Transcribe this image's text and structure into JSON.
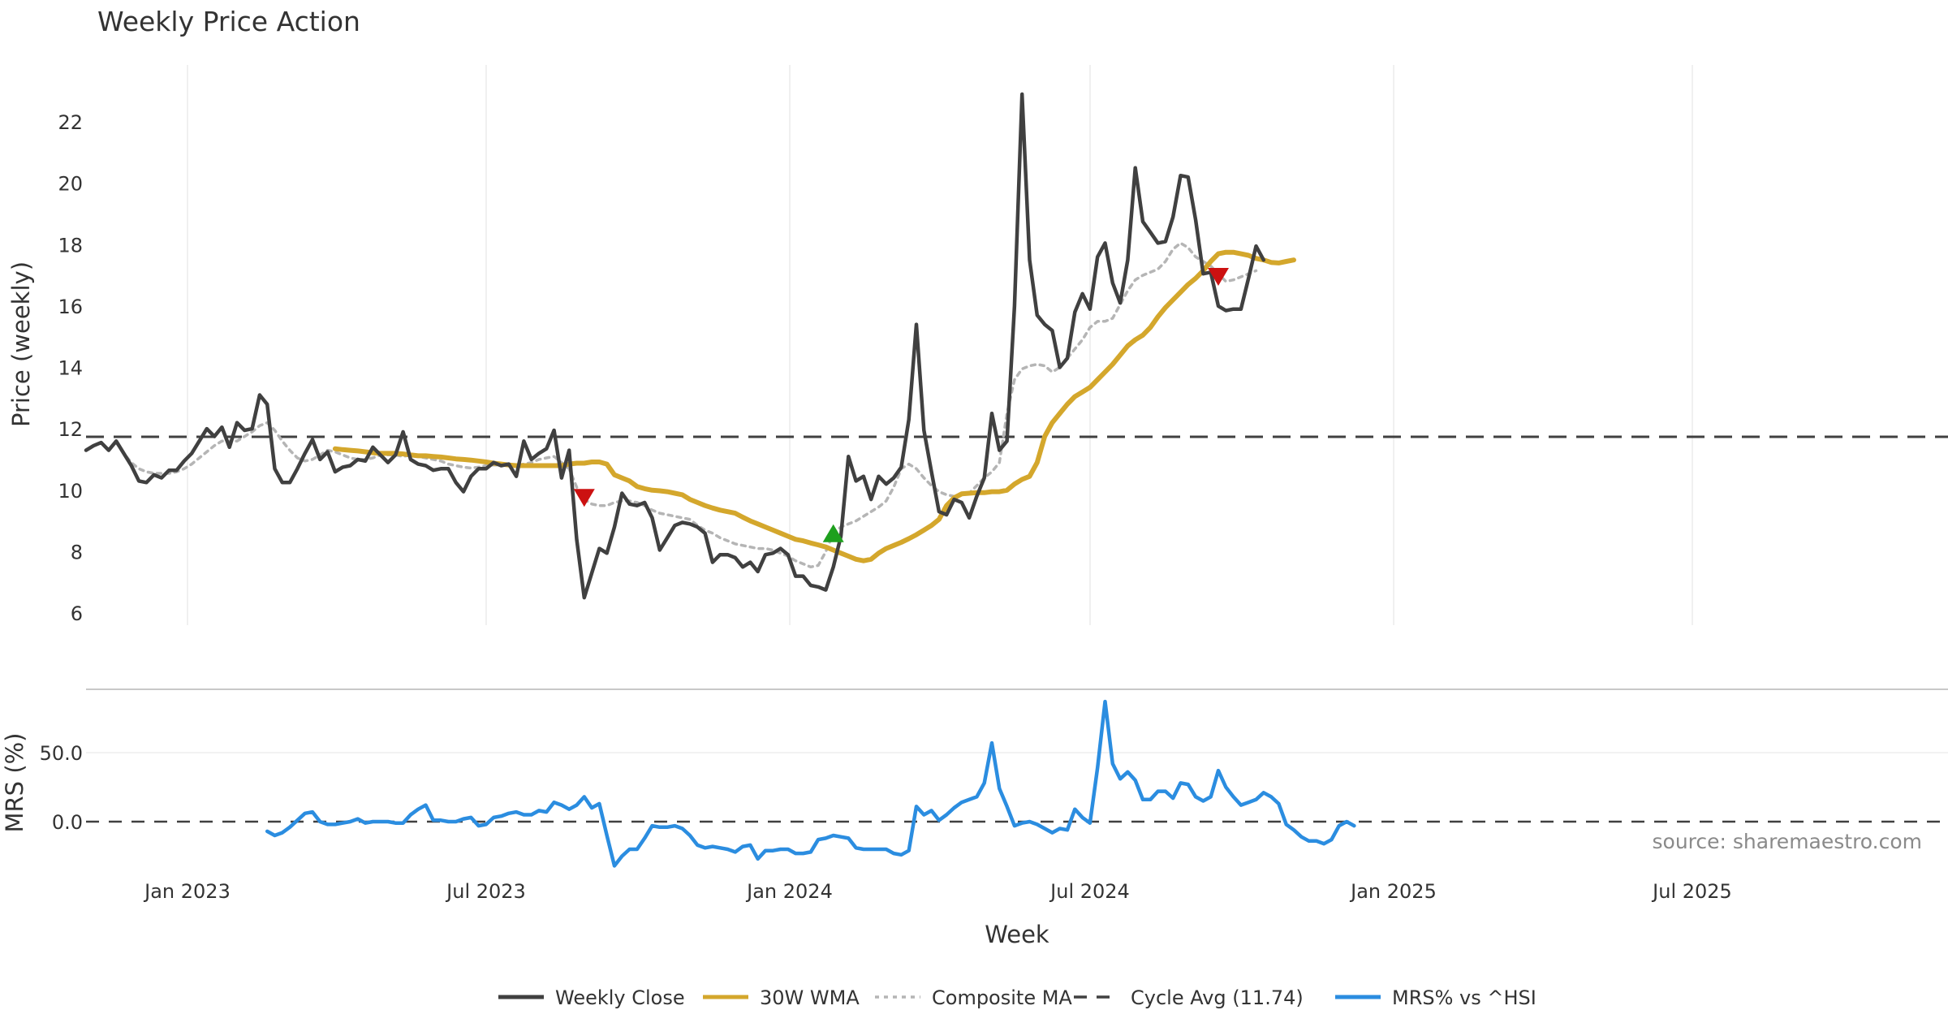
{
  "chart_data": {
    "type": "line",
    "title": "Weekly Price Action",
    "xlabel": "Week",
    "source": "source: sharemaestro.com",
    "x_tick_labels": [
      "Jan 2023",
      "Jul 2023",
      "Jan 2024",
      "Jul 2024",
      "Jan 2025",
      "Jul 2025"
    ],
    "panels": [
      {
        "name": "price",
        "ylabel": "Price (weekly)",
        "ylim": [
          5.6,
          23.9
        ],
        "yticks": [
          "6",
          "8",
          "10",
          "12",
          "14",
          "16",
          "18",
          "20",
          "22"
        ],
        "cycle_avg": 11.74,
        "series": [
          {
            "name": "Weekly Close",
            "color": "#404040",
            "start_week": 0,
            "values": [
              11.3,
              11.45,
              11.55,
              11.3,
              11.6,
              11.2,
              10.8,
              10.3,
              10.25,
              10.5,
              10.4,
              10.65,
              10.65,
              10.95,
              11.2,
              11.6,
              12.0,
              11.75,
              12.05,
              11.4,
              12.2,
              11.95,
              12.0,
              13.1,
              12.8,
              10.7,
              10.25,
              10.25,
              10.7,
              11.2,
              11.65,
              11.0,
              11.25,
              10.6,
              10.75,
              10.8,
              11.0,
              10.95,
              11.4,
              11.15,
              10.9,
              11.15,
              11.9,
              11.0,
              10.85,
              10.8,
              10.65,
              10.7,
              10.7,
              10.25,
              9.95,
              10.45,
              10.7,
              10.7,
              10.9,
              10.8,
              10.85,
              10.45,
              11.6,
              11.0,
              11.2,
              11.35,
              11.95,
              10.4,
              11.3,
              8.4,
              6.5,
              7.3,
              8.1,
              7.95,
              8.8,
              9.9,
              9.55,
              9.5,
              9.6,
              9.1,
              8.05,
              8.45,
              8.85,
              8.95,
              8.9,
              8.8,
              8.6,
              7.65,
              7.9,
              7.9,
              7.8,
              7.5,
              7.65,
              7.35,
              7.9,
              7.95,
              8.1,
              7.9,
              7.2,
              7.2,
              6.9,
              6.85,
              6.75,
              7.5,
              8.5,
              11.1,
              10.3,
              10.45,
              9.7,
              10.45,
              10.2,
              10.4,
              10.75,
              12.3,
              15.4,
              11.95,
              10.6,
              9.3,
              9.2,
              9.7,
              9.6,
              9.1,
              9.8,
              10.4,
              12.5,
              11.3,
              11.6,
              16.0,
              22.9,
              17.5,
              15.7,
              15.4,
              15.2,
              14.0,
              14.3,
              15.8,
              16.4,
              15.9,
              17.6,
              18.05,
              16.75,
              16.1,
              17.5,
              20.5,
              18.75,
              18.4,
              18.05,
              18.1,
              18.9,
              20.25,
              20.2,
              18.8,
              17.05,
              17.1,
              16.0,
              15.85,
              15.9,
              15.9,
              16.9,
              17.95,
              17.5
            ]
          },
          {
            "name": "30W WMA",
            "color": "#d4a72c",
            "start_week": 33,
            "values": [
              11.35,
              11.32,
              11.3,
              11.28,
              11.25,
              11.22,
              11.2,
              11.2,
              11.2,
              11.18,
              11.15,
              11.12,
              11.12,
              11.1,
              11.08,
              11.05,
              11.02,
              11.0,
              10.98,
              10.95,
              10.92,
              10.88,
              10.85,
              10.82,
              10.8,
              10.8,
              10.8,
              10.8,
              10.8,
              10.8,
              10.8,
              10.85,
              10.88,
              10.88,
              10.92,
              10.92,
              10.85,
              10.5,
              10.4,
              10.3,
              10.12,
              10.05,
              10.0,
              9.98,
              9.95,
              9.9,
              9.85,
              9.7,
              9.6,
              9.5,
              9.42,
              9.35,
              9.3,
              9.25,
              9.12,
              9.0,
              8.9,
              8.8,
              8.7,
              8.6,
              8.5,
              8.4,
              8.35,
              8.28,
              8.22,
              8.15,
              8.05,
              7.95,
              7.85,
              7.75,
              7.7,
              7.75,
              7.95,
              8.1,
              8.2,
              8.3,
              8.42,
              8.55,
              8.7,
              8.85,
              9.05,
              9.5,
              9.75,
              9.88,
              9.9,
              9.92,
              9.92,
              9.95,
              9.95,
              10.0,
              10.2,
              10.35,
              10.45,
              10.9,
              11.75,
              12.2,
              12.5,
              12.8,
              13.05,
              13.2,
              13.35,
              13.6,
              13.85,
              14.1,
              14.4,
              14.7,
              14.9,
              15.05,
              15.3,
              15.65,
              15.95,
              16.2,
              16.45,
              16.7,
              16.9,
              17.15,
              17.45,
              17.7,
              17.75,
              17.75,
              17.7,
              17.65,
              17.55,
              17.5,
              17.42,
              17.4,
              17.45,
              17.5
            ]
          },
          {
            "name": "Composite MA",
            "color": "#b5b5b5",
            "start_week": 4,
            "values": [
              11.55,
              11.2,
              10.9,
              10.7,
              10.6,
              10.55,
              10.55,
              10.55,
              10.6,
              10.7,
              10.85,
              11.05,
              11.25,
              11.45,
              11.6,
              11.6,
              11.6,
              11.75,
              11.9,
              12.1,
              12.2,
              11.95,
              11.6,
              11.3,
              11.05,
              10.95,
              11.0,
              11.15,
              11.3,
              11.25,
              11.15,
              11.05,
              11.0,
              11.0,
              11.05,
              11.15,
              11.15,
              11.15,
              11.1,
              11.15,
              11.1,
              11.05,
              11.0,
              10.95,
              10.85,
              10.8,
              10.75,
              10.72,
              10.75,
              10.8,
              10.82,
              10.82,
              10.8,
              10.8,
              10.85,
              10.9,
              11.0,
              11.05,
              11.1,
              10.9,
              10.7,
              10.1,
              9.7,
              9.55,
              9.5,
              9.5,
              9.6,
              9.65,
              9.65,
              9.6,
              9.5,
              9.35,
              9.25,
              9.2,
              9.15,
              9.1,
              9.05,
              8.85,
              8.7,
              8.6,
              8.45,
              8.35,
              8.25,
              8.2,
              8.15,
              8.1,
              8.1,
              8.05,
              7.95,
              7.85,
              7.7,
              7.6,
              7.5,
              7.55,
              8.0,
              8.6,
              8.8,
              8.9,
              9.0,
              9.15,
              9.3,
              9.45,
              9.65,
              10.1,
              10.7,
              10.85,
              10.7,
              10.4,
              10.15,
              9.95,
              9.85,
              9.8,
              9.85,
              9.9,
              10.15,
              10.4,
              10.6,
              10.9,
              12.5,
              13.6,
              13.95,
              14.05,
              14.1,
              14.05,
              13.85,
              14.0,
              14.3,
              14.6,
              14.9,
              15.3,
              15.5,
              15.5,
              15.6,
              16.05,
              16.5,
              16.85,
              17.0,
              17.1,
              17.2,
              17.45,
              17.85,
              18.05,
              17.9,
              17.6,
              17.45,
              17.3,
              17.05,
              16.8,
              16.85,
              16.95,
              17.05,
              17.15
            ]
          }
        ],
        "signals": [
          {
            "type": "sell",
            "week": 66,
            "value": 9.75,
            "color": "#cc1111"
          },
          {
            "type": "buy",
            "week": 99,
            "value": 8.6,
            "color": "#1ea01e"
          },
          {
            "type": "sell",
            "week": 150,
            "value": 16.95,
            "color": "#cc1111"
          }
        ]
      },
      {
        "name": "mrs",
        "ylabel": "MRS (%)",
        "ylim": [
          -38,
          90
        ],
        "yticks": [
          "0.0",
          "50.0"
        ],
        "series": [
          {
            "name": "MRS% vs ^HSI",
            "color": "#2b8de0",
            "start_week": 24,
            "values": [
              -7,
              -10,
              -8,
              -4,
              1,
              6,
              7,
              0,
              -2,
              -2,
              -1,
              0,
              2,
              -1,
              0,
              0,
              0,
              -1,
              -1,
              5,
              9,
              12,
              1,
              1,
              0,
              0,
              2,
              3,
              -3,
              -2,
              3,
              4,
              6,
              7,
              5,
              5,
              8,
              7,
              14,
              12,
              9,
              12,
              18,
              10,
              13,
              -10,
              -32,
              -25,
              -20,
              -20,
              -12,
              -3,
              -4,
              -4,
              -3,
              -5,
              -10,
              -17,
              -19,
              -18,
              -19,
              -20,
              -22,
              -18,
              -17,
              -27,
              -21,
              -21,
              -20,
              -20,
              -23,
              -23,
              -22,
              -13,
              -12,
              -10,
              -11,
              -12,
              -19,
              -20,
              -20,
              -20,
              -20,
              -23,
              -24,
              -21,
              11,
              5,
              8,
              1,
              5,
              10,
              14,
              16,
              18,
              28,
              57,
              24,
              11,
              -3,
              -1,
              0,
              -2,
              -5,
              -8,
              -5,
              -6,
              9,
              3,
              -1,
              39,
              87,
              42,
              31,
              36,
              30,
              16,
              16,
              22,
              22,
              17,
              28,
              27,
              18,
              15,
              18,
              37,
              25,
              18,
              12,
              14,
              16,
              21,
              18,
              13,
              -2,
              -6,
              -11,
              -14,
              -14,
              -16,
              -13,
              -3,
              0,
              -3
            ]
          }
        ]
      }
    ],
    "legend": {
      "position": "bottom-center",
      "entries": [
        {
          "label": "Weekly Close",
          "color": "#404040",
          "style": "solid"
        },
        {
          "label": "30W WMA",
          "color": "#d4a72c",
          "style": "solid"
        },
        {
          "label": "Composite MA",
          "color": "#b5b5b5",
          "style": "dotted"
        },
        {
          "label": "Cycle Avg (11.74)",
          "color": "#404040",
          "style": "dashed"
        },
        {
          "label": "MRS% vs ^HSI",
          "color": "#2b8de0",
          "style": "solid"
        }
      ]
    }
  }
}
